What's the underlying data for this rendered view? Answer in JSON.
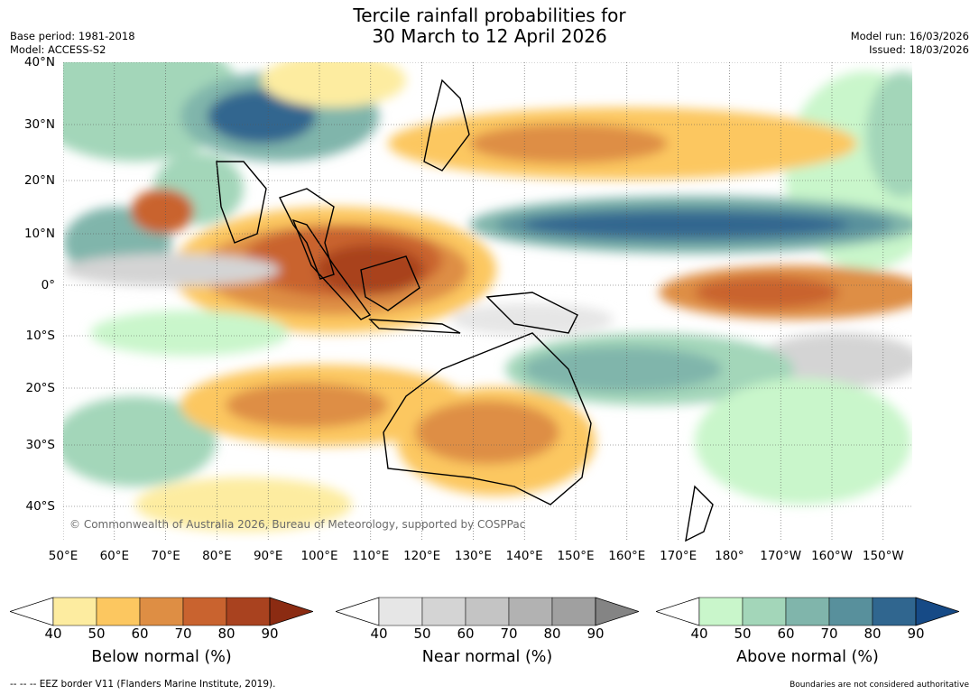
{
  "title_line1": "Tercile rainfall probabilities for",
  "title_line2": "30 March to 12 April 2026",
  "base_period": "Base period: 1981-2018",
  "model": "Model: ACCESS-S2",
  "model_run": "Model run: 16/03/2026",
  "issued": "Issued: 18/03/2026",
  "copyright": "© Commonwealth of Australia 2026, Bureau of Meteorology, supported by COSPPac",
  "x_ticks": [
    "50°E",
    "60°E",
    "70°E",
    "80°E",
    "90°E",
    "100°E",
    "110°E",
    "120°E",
    "130°E",
    "140°E",
    "150°E",
    "160°E",
    "170°E",
    "180°",
    "170°W",
    "160°W",
    "150°W"
  ],
  "y_ticks": [
    "40°N",
    "30°N",
    "20°N",
    "10°N",
    "0°",
    "10°S",
    "20°S",
    "30°S",
    "40°S"
  ],
  "colorbars": [
    {
      "label": "Below normal (%)",
      "ticks": [
        "40",
        "50",
        "60",
        "70",
        "80",
        "90"
      ],
      "colors": [
        "#fdeca0",
        "#fcc760",
        "#de8e44",
        "#c9632f",
        "#a9421f",
        "#8b2b12"
      ]
    },
    {
      "label": "Near normal (%)",
      "ticks": [
        "40",
        "50",
        "60",
        "70",
        "80",
        "90"
      ],
      "colors": [
        "#e6e6e6",
        "#d4d4d4",
        "#c4c4c4",
        "#b2b2b2",
        "#a0a0a0",
        "#848484"
      ]
    },
    {
      "label": "Above normal (%)",
      "ticks": [
        "40",
        "50",
        "60",
        "70",
        "80",
        "90"
      ],
      "colors": [
        "#c9f6cb",
        "#a3d6b9",
        "#80b5ab",
        "#58909c",
        "#30668f",
        "#164a86"
      ]
    }
  ],
  "eez_note": "--  --  -- EEZ border V11 (Flanders Marine Institute, 2019).",
  "boundaries_note": "Boundaries are not considered authoritative"
}
